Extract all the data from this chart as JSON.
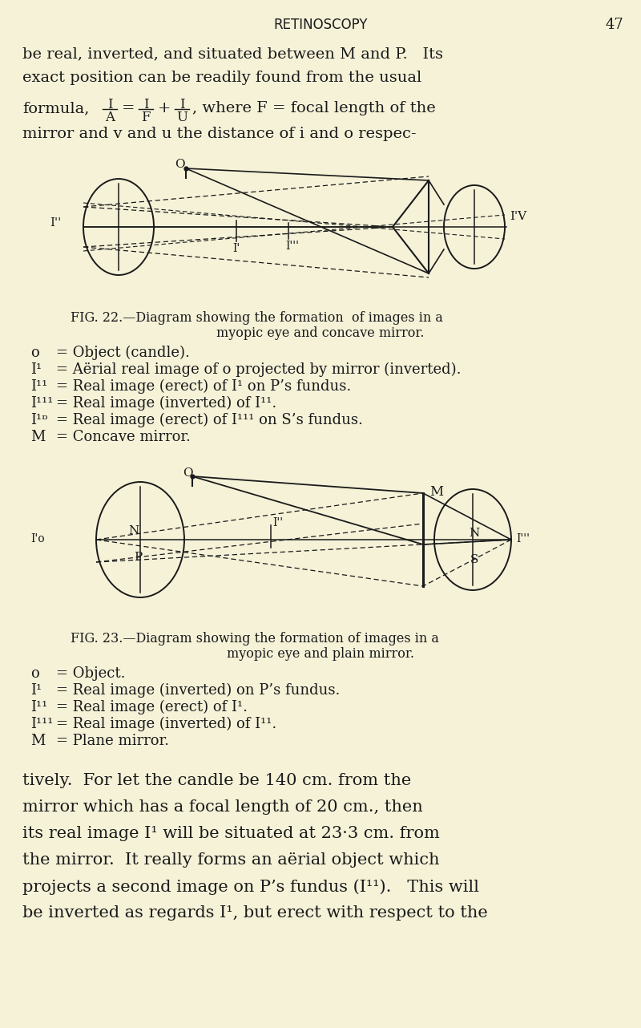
{
  "bg_color": "#f5f2d8",
  "text_color": "#1a1a1a",
  "header_title": "RETINOSCOPY",
  "header_page": "47",
  "para1_l1": "be real, inverted, and situated between M and P.   Its",
  "para1_l2": "exact position can be readily found from the usual",
  "para2": "mirror and v and u the distance of i and o respec-",
  "fig22_cap1": "FIG. 22.—Diagram showing the formation  of images in a",
  "fig22_cap2": "myopic eye and concave mirror.",
  "fig23_cap1": "FIG. 23.—Diagram showing the formation of images in a",
  "fig23_cap2": "myopic eye and plain mirror.",
  "legend22": [
    [
      "o",
      "= Object (candle)."
    ],
    [
      "I¹",
      "= Aërial real image of o projected by mirror (inverted)."
    ],
    [
      "I¹¹",
      "= Real image (erect) of I¹ on P’s fundus."
    ],
    [
      "I¹¹¹",
      "= Real image (inverted) of I¹¹."
    ],
    [
      "I¹ᶛ",
      "= Real image (erect) of I¹¹¹ on S’s fundus."
    ],
    [
      "M",
      "= Concave mirror."
    ]
  ],
  "legend23": [
    [
      "o",
      "= Object."
    ],
    [
      "I¹",
      "= Real image (inverted) on P’s fundus."
    ],
    [
      "I¹¹",
      "= Real image (erect) of I¹."
    ],
    [
      "I¹¹¹",
      "= Real image (inverted) of I¹¹."
    ],
    [
      "M",
      "= Plane mirror."
    ]
  ],
  "para3": [
    "tively.  For let the candle be 140 cm. from the",
    "mirror which has a focal length of 20 cm., then",
    "its real image I¹ will be situated at 23·3 cm. from",
    "the mirror.  It really forms an aërial object which",
    "projects a second image on P’s fundus (I¹¹).   This will",
    "be inverted as regards I¹, but erect with respect to the"
  ]
}
